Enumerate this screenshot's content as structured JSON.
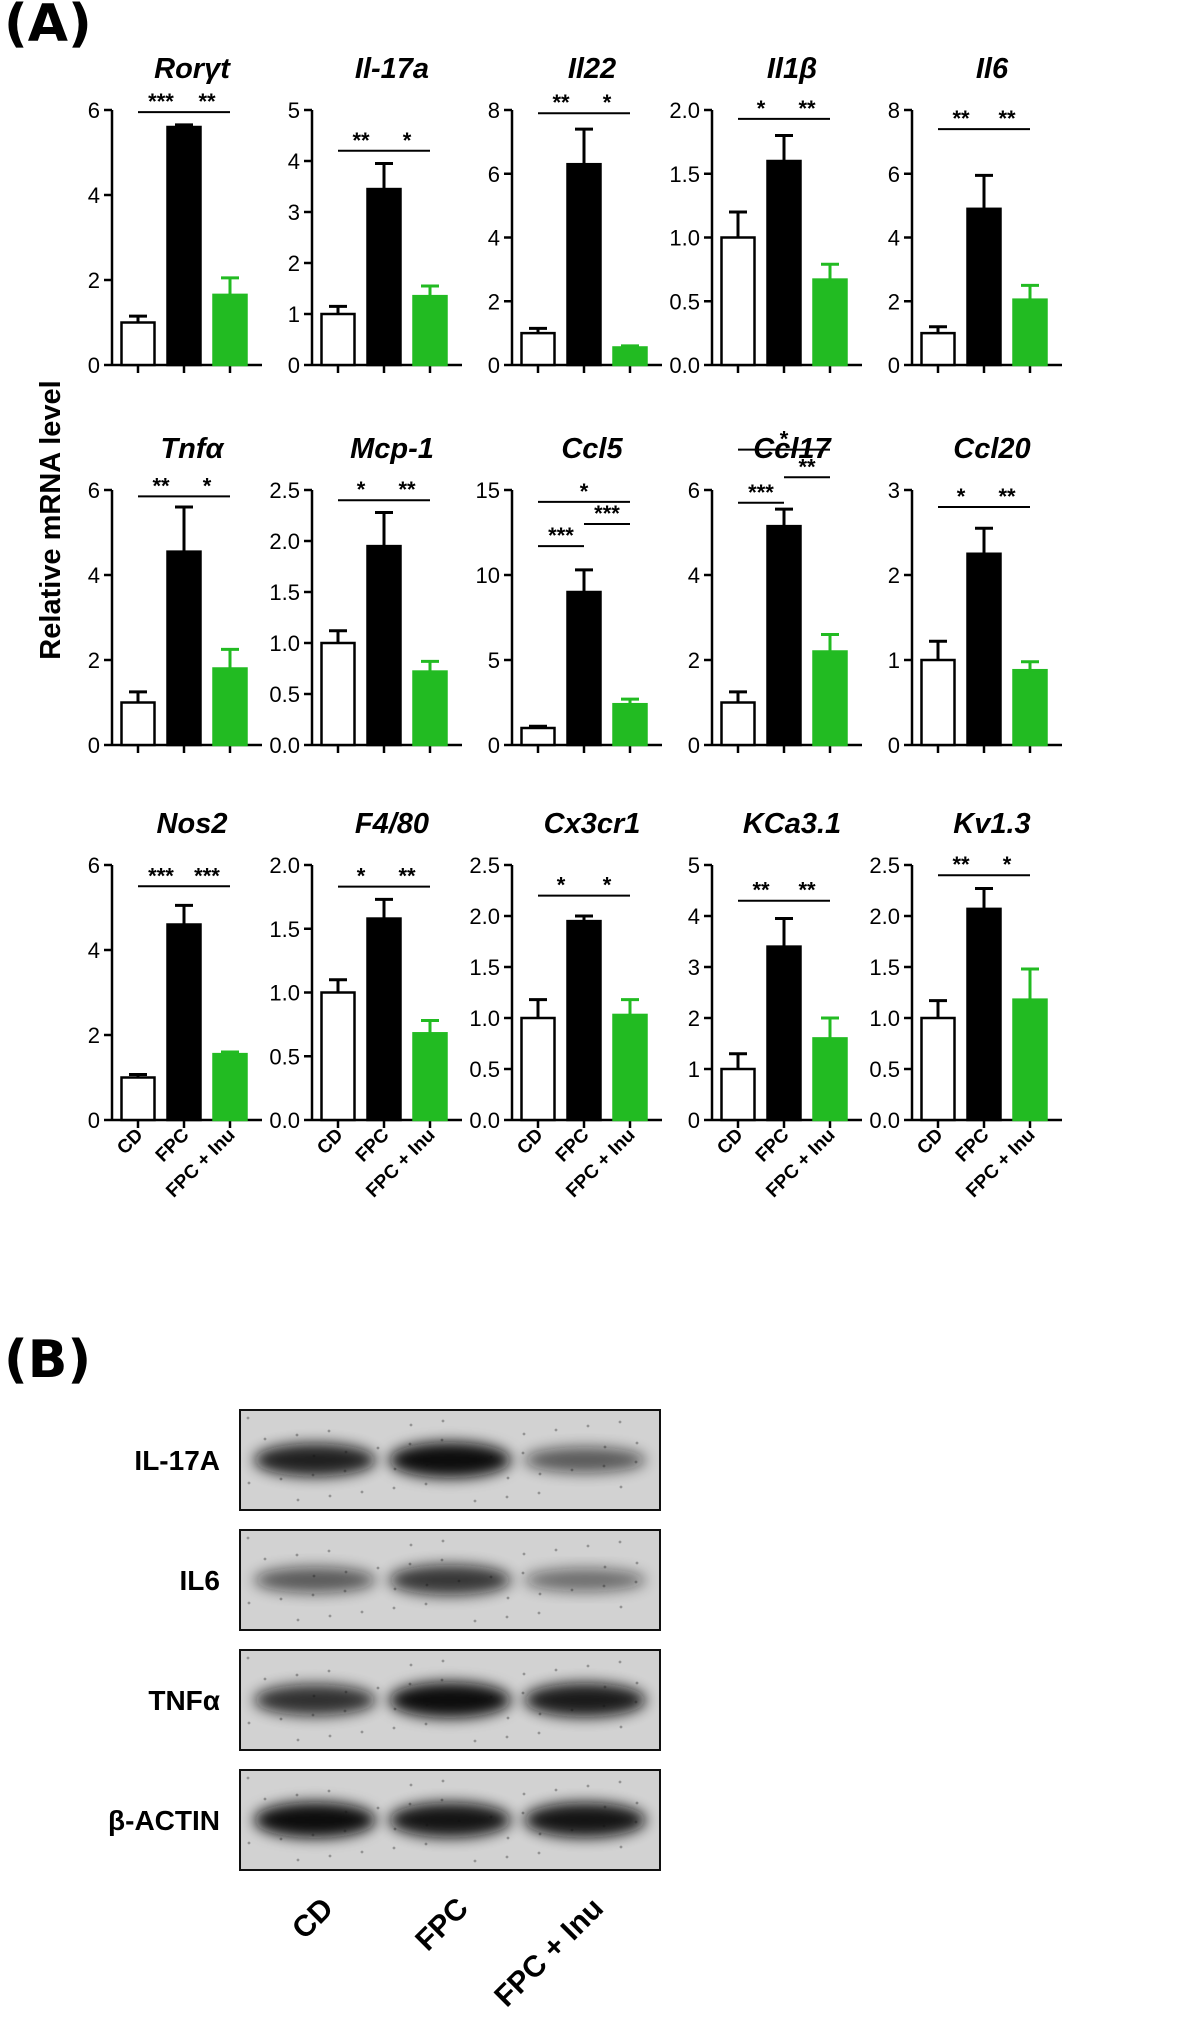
{
  "panel_a_label": "(A)",
  "panel_b_label": "(B)",
  "y_axis_label": "Relative mRNA level",
  "groups": [
    "CD",
    "FPC",
    "FPC + Inu"
  ],
  "colors": {
    "CD": "#ffffff",
    "FPC": "#000000",
    "FPC + Inu": "#22bb22"
  },
  "chart_data": [
    {
      "type": "bar",
      "title": "Rorγt",
      "ylim": [
        0,
        6
      ],
      "ticks": [
        "0",
        "2",
        "4",
        "6"
      ],
      "values": [
        1.0,
        5.6,
        1.65
      ],
      "errors": [
        0.15,
        0.05,
        0.4
      ],
      "sig": [
        {
          "a": 0,
          "b": 1,
          "label": "***",
          "y": 5.95
        },
        {
          "a": 1,
          "b": 2,
          "label": "**",
          "y": 5.95
        }
      ]
    },
    {
      "type": "bar",
      "title": "Il-17a",
      "ylim": [
        0,
        5
      ],
      "ticks": [
        "0",
        "1",
        "2",
        "3",
        "4",
        "5"
      ],
      "values": [
        1.0,
        3.45,
        1.35
      ],
      "errors": [
        0.15,
        0.5,
        0.2
      ],
      "sig": [
        {
          "a": 0,
          "b": 1,
          "label": "**",
          "y": 4.2
        },
        {
          "a": 1,
          "b": 2,
          "label": "*",
          "y": 4.2
        }
      ]
    },
    {
      "type": "bar",
      "title": "Il22",
      "ylim": [
        0,
        8
      ],
      "ticks": [
        "0",
        "2",
        "4",
        "6",
        "8"
      ],
      "values": [
        1.0,
        6.3,
        0.55
      ],
      "errors": [
        0.15,
        1.1,
        0.05
      ],
      "sig": [
        {
          "a": 0,
          "b": 1,
          "label": "**",
          "y": 7.9
        },
        {
          "a": 1,
          "b": 2,
          "label": "*",
          "y": 7.9
        }
      ]
    },
    {
      "type": "bar",
      "title": "Il1β",
      "ylim": [
        0,
        2
      ],
      "ticks": [
        "0.0",
        "0.5",
        "1.0",
        "1.5",
        "2.0"
      ],
      "values": [
        1.0,
        1.6,
        0.67
      ],
      "errors": [
        0.2,
        0.2,
        0.12
      ],
      "sig": [
        {
          "a": 0,
          "b": 1,
          "label": "*",
          "y": 1.93
        },
        {
          "a": 1,
          "b": 2,
          "label": "**",
          "y": 1.93
        }
      ]
    },
    {
      "type": "bar",
      "title": "Il6",
      "ylim": [
        0,
        8
      ],
      "ticks": [
        "0",
        "2",
        "4",
        "6",
        "8"
      ],
      "values": [
        1.0,
        4.9,
        2.05
      ],
      "errors": [
        0.2,
        1.05,
        0.45
      ],
      "sig": [
        {
          "a": 0,
          "b": 1,
          "label": "**",
          "y": 7.4
        },
        {
          "a": 1,
          "b": 2,
          "label": "**",
          "y": 7.4
        }
      ]
    },
    {
      "type": "bar",
      "title": "Tnfα",
      "ylim": [
        0,
        6
      ],
      "ticks": [
        "0",
        "2",
        "4",
        "6"
      ],
      "values": [
        1.0,
        4.55,
        1.8
      ],
      "errors": [
        0.25,
        1.05,
        0.45
      ],
      "sig": [
        {
          "a": 0,
          "b": 1,
          "label": "**",
          "y": 5.85
        },
        {
          "a": 1,
          "b": 2,
          "label": "*",
          "y": 5.85
        }
      ]
    },
    {
      "type": "bar",
      "title": "Mcp-1",
      "ylim": [
        0,
        2.5
      ],
      "ticks": [
        "0.0",
        "0.5",
        "1.0",
        "1.5",
        "2.0",
        "2.5"
      ],
      "values": [
        1.0,
        1.95,
        0.72
      ],
      "errors": [
        0.12,
        0.33,
        0.1
      ],
      "sig": [
        {
          "a": 0,
          "b": 1,
          "label": "*",
          "y": 2.4
        },
        {
          "a": 1,
          "b": 2,
          "label": "**",
          "y": 2.4
        }
      ]
    },
    {
      "type": "bar",
      "title": "Ccl5",
      "ylim": [
        0,
        15
      ],
      "ticks": [
        "0",
        "5",
        "10",
        "15"
      ],
      "values": [
        1.0,
        9.0,
        2.4
      ],
      "errors": [
        0.1,
        1.3,
        0.3
      ],
      "sig": [
        {
          "a": 0,
          "b": 1,
          "label": "***",
          "y": 11.7
        },
        {
          "a": 1,
          "b": 2,
          "label": "***",
          "y": 13.0
        },
        {
          "a": 0,
          "b": 2,
          "label": "*",
          "y": 14.3
        }
      ]
    },
    {
      "type": "bar",
      "title": "Ccl17",
      "ylim": [
        0,
        6
      ],
      "ticks": [
        "0",
        "2",
        "4",
        "6"
      ],
      "values": [
        1.0,
        5.15,
        2.2
      ],
      "errors": [
        0.25,
        0.4,
        0.4
      ],
      "sig": [
        {
          "a": 0,
          "b": 1,
          "label": "***",
          "y": 5.7
        },
        {
          "a": 1,
          "b": 2,
          "label": "**",
          "y": 6.3
        },
        {
          "a": 0,
          "b": 2,
          "label": "*",
          "y": 6.95
        }
      ]
    },
    {
      "type": "bar",
      "title": "Ccl20",
      "ylim": [
        0,
        3
      ],
      "ticks": [
        "0",
        "1",
        "2",
        "3"
      ],
      "values": [
        1.0,
        2.25,
        0.88
      ],
      "errors": [
        0.22,
        0.3,
        0.1
      ],
      "sig": [
        {
          "a": 0,
          "b": 1,
          "label": "*",
          "y": 2.8
        },
        {
          "a": 1,
          "b": 2,
          "label": "**",
          "y": 2.8
        }
      ]
    },
    {
      "type": "bar",
      "title": "Nos2",
      "ylim": [
        0,
        6
      ],
      "ticks": [
        "0",
        "2",
        "4",
        "6"
      ],
      "values": [
        1.0,
        4.6,
        1.55
      ],
      "errors": [
        0.07,
        0.45,
        0.05
      ],
      "sig": [
        {
          "a": 0,
          "b": 1,
          "label": "***",
          "y": 5.5
        },
        {
          "a": 1,
          "b": 2,
          "label": "***",
          "y": 5.5
        }
      ]
    },
    {
      "type": "bar",
      "title": "F4/80",
      "ylim": [
        0,
        2
      ],
      "ticks": [
        "0.0",
        "0.5",
        "1.0",
        "1.5",
        "2.0"
      ],
      "values": [
        1.0,
        1.58,
        0.68
      ],
      "errors": [
        0.1,
        0.15,
        0.1
      ],
      "sig": [
        {
          "a": 0,
          "b": 1,
          "label": "*",
          "y": 1.83
        },
        {
          "a": 1,
          "b": 2,
          "label": "**",
          "y": 1.83
        }
      ]
    },
    {
      "type": "bar",
      "title": "Cx3cr1",
      "ylim": [
        0,
        2.5
      ],
      "ticks": [
        "0.0",
        "0.5",
        "1.0",
        "1.5",
        "2.0",
        "2.5"
      ],
      "values": [
        1.0,
        1.95,
        1.03
      ],
      "errors": [
        0.18,
        0.05,
        0.15
      ],
      "sig": [
        {
          "a": 0,
          "b": 1,
          "label": "*",
          "y": 2.2
        },
        {
          "a": 1,
          "b": 2,
          "label": "*",
          "y": 2.2
        }
      ]
    },
    {
      "type": "bar",
      "title": "KCa3.1",
      "ylim": [
        0,
        5
      ],
      "ticks": [
        "0",
        "1",
        "2",
        "3",
        "4",
        "5"
      ],
      "values": [
        1.0,
        3.4,
        1.6
      ],
      "errors": [
        0.3,
        0.55,
        0.4
      ],
      "sig": [
        {
          "a": 0,
          "b": 1,
          "label": "**",
          "y": 4.3
        },
        {
          "a": 1,
          "b": 2,
          "label": "**",
          "y": 4.3
        }
      ]
    },
    {
      "type": "bar",
      "title": "Kv1.3",
      "ylim": [
        0,
        2.5
      ],
      "ticks": [
        "0.0",
        "0.5",
        "1.0",
        "1.5",
        "2.0",
        "2.5"
      ],
      "values": [
        1.0,
        2.07,
        1.18
      ],
      "errors": [
        0.17,
        0.2,
        0.3
      ],
      "sig": [
        {
          "a": 0,
          "b": 1,
          "label": "**",
          "y": 2.4
        },
        {
          "a": 1,
          "b": 2,
          "label": "*",
          "y": 2.4
        }
      ]
    }
  ],
  "western": {
    "rows": [
      {
        "label": "IL-17A",
        "intensity": [
          0.85,
          1.0,
          0.45
        ]
      },
      {
        "label": "IL6",
        "intensity": [
          0.45,
          0.7,
          0.3
        ]
      },
      {
        "label": "TNFα",
        "intensity": [
          0.75,
          1.0,
          0.9
        ]
      },
      {
        "label": "β-ACTIN",
        "intensity": [
          1.0,
          0.95,
          0.95
        ]
      }
    ],
    "lanes": [
      "CD",
      "FPC",
      "FPC + Inu"
    ]
  }
}
